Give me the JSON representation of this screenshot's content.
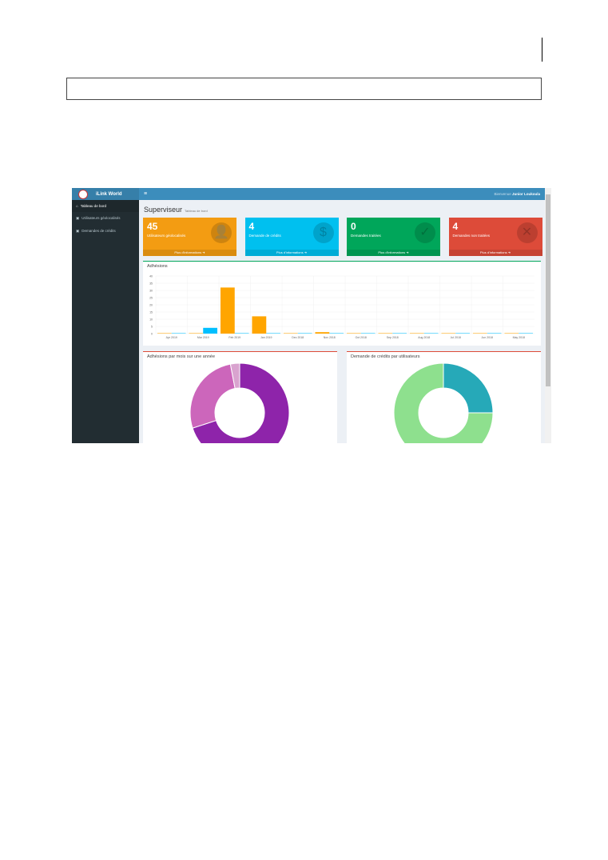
{
  "app": {
    "name": "iLink World",
    "welcome": "Bienvenue",
    "user": "Junior Loukoula",
    "menu_icon": "hamburger-icon"
  },
  "sidebar": {
    "items": [
      {
        "label": "Tableau de bord",
        "icon": "home-icon"
      },
      {
        "label": "Utilisateurs géolocalisés",
        "icon": "users-icon"
      },
      {
        "label": "Demandes de crédits",
        "icon": "users-icon"
      }
    ]
  },
  "page": {
    "title": "Superviseur",
    "subtitle": "Tableau de bord"
  },
  "cards": [
    {
      "value": "45",
      "label": "Utilisateurs géolocalisés",
      "footer": "Plus d'informations",
      "color": "#f39c12",
      "icon": "user-plus-icon"
    },
    {
      "value": "4",
      "label": "Demande de crédits",
      "footer": "Plus d'informations",
      "color": "#00c0ef",
      "icon": "money-icon"
    },
    {
      "value": "0",
      "label": "Demandes traitées",
      "footer": "Plus d'informations",
      "color": "#00a65a",
      "icon": "check-icon"
    },
    {
      "value": "4",
      "label": "Demandes non traitées",
      "footer": "Plus d'informations",
      "color": "#dd4b39",
      "icon": "close-icon"
    }
  ],
  "chart_data": [
    {
      "type": "bar",
      "title": "Adhésions",
      "categories": [
        "Apr 2019",
        "Mar 2019",
        "Feb 2019",
        "Jan 2019",
        "Dec 2018",
        "Nov 2018",
        "Oct 2018",
        "Sep 2018",
        "Aug 2018",
        "Jul 2018",
        "Jun 2018",
        "May 2018"
      ],
      "yticks": [
        "0",
        "5",
        "10",
        "15",
        "20",
        "25",
        "30",
        "35",
        "40"
      ],
      "ylim": [
        0,
        40
      ],
      "grid": true,
      "series": [
        {
          "color": "#ffa500",
          "values": [
            0,
            0,
            32,
            12,
            0,
            1,
            0,
            0,
            0,
            0,
            0,
            0
          ]
        },
        {
          "color": "#00bfff",
          "values": [
            0,
            4,
            0,
            0,
            0,
            0,
            0,
            0,
            0,
            0,
            0,
            0
          ]
        }
      ]
    },
    {
      "type": "pie",
      "title": "Adhésions par mois sur une année",
      "values": [
        70,
        27,
        3
      ],
      "colors": [
        "#8e24aa",
        "#cc66bb",
        "#d9a3cf"
      ]
    },
    {
      "type": "pie",
      "title": "Demande de crédits par utilisateurs",
      "values": [
        25,
        75
      ],
      "colors": [
        "#26a9b8",
        "#8ee08e"
      ]
    }
  ]
}
